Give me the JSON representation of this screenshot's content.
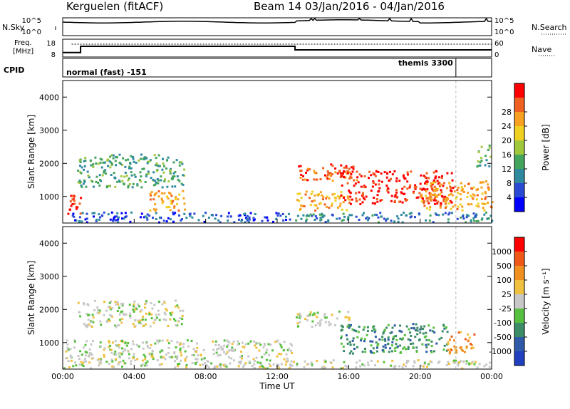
{
  "header": {
    "station": "Kerguelen (fitACF)",
    "beam_info": "Beam 14  03/Jan/2016 - 04/Jan/2016"
  },
  "status_panels": {
    "nsky_label": "N.Sky",
    "nsearch_label": "N.Search",
    "noise_ticks": [
      "10^5",
      "10^0"
    ],
    "freq_label_line1": "Freq.",
    "freq_label_line2": "[MHz]",
    "freq_ticks": [
      "18",
      "8"
    ],
    "nave_label": "Nave",
    "nave_ticks": [
      "60",
      "0"
    ],
    "cpid_label": "CPID",
    "cpid_programs": [
      {
        "name": "normal (fast) -151",
        "start_hour": 0.0
      },
      {
        "name": "themis 3300",
        "start_hour": 22.0
      }
    ],
    "freq_steps": [
      {
        "start_hour": 0.0,
        "mhz": 10.5
      },
      {
        "start_hour": 1.0,
        "mhz": 14.0
      },
      {
        "start_hour": 13.0,
        "mhz": 12.0
      },
      {
        "start_hour": 22.0,
        "mhz": 12.0
      }
    ]
  },
  "chart_data": [
    {
      "type": "heatmap",
      "name": "power",
      "ylabel": "Slant Range [km]",
      "xlabel": "",
      "xlim": [
        0,
        24
      ],
      "ylim": [
        200,
        4500
      ],
      "y_ticks": [
        "1000",
        "2000",
        "3000",
        "4000"
      ],
      "colorbar": {
        "label": "Power [dB]",
        "ticks": [
          "4",
          "8",
          "12",
          "16",
          "20",
          "24",
          "28"
        ],
        "colors": [
          "#0000ff",
          "#2a4ad4",
          "#2f8aa0",
          "#44a45c",
          "#a0c83c",
          "#f0d020",
          "#f8a020",
          "#f06020",
          "#ff0000"
        ]
      },
      "echo_regions": [
        {
          "start": 0.1,
          "end": 1.0,
          "range_lo": 500,
          "range_hi": 1100,
          "level": 8
        },
        {
          "start": 0.8,
          "end": 6.8,
          "range_lo": 1300,
          "range_hi": 2300,
          "level": 3
        },
        {
          "start": 4.8,
          "end": 6.8,
          "range_lo": 600,
          "range_hi": 1200,
          "level": 6
        },
        {
          "start": 0.5,
          "end": 12.8,
          "range_lo": 250,
          "range_hi": 550,
          "level": 1
        },
        {
          "start": 13.0,
          "end": 16.5,
          "range_lo": 1500,
          "range_hi": 2000,
          "level": 7
        },
        {
          "start": 13.0,
          "end": 16.0,
          "range_lo": 600,
          "range_hi": 1200,
          "level": 6
        },
        {
          "start": 15.5,
          "end": 21.8,
          "range_lo": 800,
          "range_hi": 1800,
          "level": 8
        },
        {
          "start": 20.0,
          "end": 24.0,
          "range_lo": 600,
          "range_hi": 1500,
          "level": 6
        },
        {
          "start": 13.0,
          "end": 24.0,
          "range_lo": 250,
          "range_hi": 550,
          "level": 2
        },
        {
          "start": 23.0,
          "end": 24.0,
          "range_lo": 1900,
          "range_hi": 2600,
          "level": 3
        }
      ]
    },
    {
      "type": "heatmap",
      "name": "velocity",
      "ylabel": "Slant Range [km]",
      "xlabel": "Time UT",
      "xlim": [
        0,
        24
      ],
      "ylim": [
        200,
        4500
      ],
      "x_ticks": [
        "00:00",
        "04:00",
        "08:00",
        "12:00",
        "16:00",
        "20:00",
        "00:00"
      ],
      "y_ticks": [
        "1000",
        "2000",
        "3000",
        "4000"
      ],
      "colorbar": {
        "label": "Velocity [m s⁻¹]",
        "ticks": [
          "1000",
          "500",
          "100",
          "25",
          "-25",
          "-100",
          "-500",
          "-1000"
        ],
        "colors": [
          "#2040c0",
          "#2f5aa8",
          "#3c8c68",
          "#58c040",
          "#c8c8c8",
          "#f0c040",
          "#f09020",
          "#f05818",
          "#ff0000"
        ]
      },
      "echo_regions": [
        {
          "start": 0.1,
          "end": 12.8,
          "range_lo": 500,
          "range_hi": 1100,
          "level": 4
        },
        {
          "start": 0.8,
          "end": 6.8,
          "range_lo": 1500,
          "range_hi": 2300,
          "level": 4
        },
        {
          "start": 13.0,
          "end": 16.0,
          "range_lo": 1500,
          "range_hi": 2000,
          "level": 4
        },
        {
          "start": 15.5,
          "end": 21.5,
          "range_lo": 700,
          "range_hi": 1600,
          "level": 2
        },
        {
          "start": 21.5,
          "end": 23.0,
          "range_lo": 700,
          "range_hi": 1400,
          "level": 6
        },
        {
          "start": 0.0,
          "end": 24.0,
          "range_lo": 250,
          "range_hi": 500,
          "level": 4
        }
      ]
    }
  ]
}
